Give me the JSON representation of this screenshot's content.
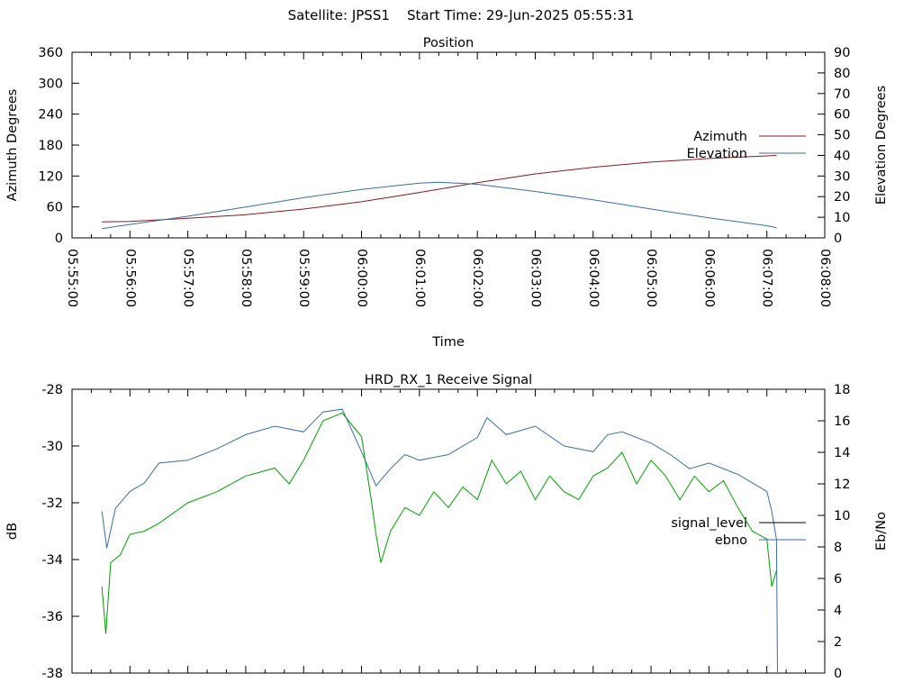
{
  "title": "Satellite: JPSS1    Start Time: 29-Jun-2025 05:55:31",
  "chart_data": [
    {
      "type": "line",
      "title": "Position",
      "xlabel": "Time",
      "ylabel": "Azimuth Degrees",
      "y2label": "Elevation Degrees",
      "xlim": [
        "05:55:00",
        "06:08:00"
      ],
      "x_tick_labels": [
        "05:55:00",
        "05:56:00",
        "05:57:00",
        "05:58:00",
        "05:59:00",
        "06:00:00",
        "06:01:00",
        "06:02:00",
        "06:03:00",
        "06:04:00",
        "06:05:00",
        "06:06:00",
        "06:07:00",
        "06:08:00"
      ],
      "ylim": [
        0,
        360
      ],
      "y_ticks": [
        0,
        60,
        120,
        180,
        240,
        300,
        360
      ],
      "y2lim": [
        0,
        90
      ],
      "y2_ticks": [
        0,
        10,
        20,
        30,
        40,
        50,
        60,
        70,
        80,
        90
      ],
      "legend": "right",
      "series": [
        {
          "name": "Azimuth",
          "axis": "y",
          "color": "#8b1a1a",
          "x": [
            "05:55:31",
            "05:56:00",
            "05:57:00",
            "05:58:00",
            "05:59:00",
            "06:00:00",
            "06:01:00",
            "06:02:00",
            "06:03:00",
            "06:04:00",
            "06:05:00",
            "06:06:00",
            "06:07:00",
            "06:07:10"
          ],
          "y": [
            31,
            32,
            38,
            45,
            56,
            70,
            88,
            107,
            124,
            137,
            147,
            154,
            159,
            160
          ]
        },
        {
          "name": "Elevation",
          "axis": "y2",
          "color": "#3a6ea5",
          "x": [
            "05:55:31",
            "05:56:00",
            "05:57:00",
            "05:58:00",
            "05:59:00",
            "06:00:00",
            "06:01:00",
            "06:01:20",
            "06:02:00",
            "06:03:00",
            "06:04:00",
            "06:05:00",
            "06:06:00",
            "06:07:00",
            "06:07:10"
          ],
          "y": [
            4.5,
            6.5,
            10.5,
            15,
            19.5,
            23.5,
            26.5,
            27,
            26,
            22.5,
            18.5,
            14,
            9.7,
            5.9,
            5
          ]
        }
      ]
    },
    {
      "type": "line",
      "title": "HRD_RX_1 Receive Signal",
      "ylabel": "dB",
      "y2label": "Eb/No",
      "xlim": [
        "05:55:00",
        "06:08:00"
      ],
      "ylim": [
        -38,
        -28
      ],
      "y_ticks": [
        -38,
        -36,
        -34,
        -32,
        -30,
        -28
      ],
      "y2lim": [
        0,
        18
      ],
      "y2_ticks": [
        0,
        2,
        4,
        6,
        8,
        10,
        12,
        14,
        16,
        18
      ],
      "legend": "right",
      "series": [
        {
          "name": "signal_level",
          "axis": "y",
          "color": "#3a6ea5",
          "x": [
            "05:55:31",
            "05:55:36",
            "05:55:45",
            "05:56:00",
            "05:56:15",
            "05:56:30",
            "05:57:00",
            "05:57:30",
            "05:58:00",
            "05:58:30",
            "05:59:00",
            "05:59:20",
            "05:59:40",
            "06:00:00",
            "06:00:15",
            "06:00:30",
            "06:00:45",
            "06:01:00",
            "06:01:30",
            "06:02:00",
            "06:02:10",
            "06:02:30",
            "06:03:00",
            "06:03:30",
            "06:04:00",
            "06:04:15",
            "06:04:30",
            "06:05:00",
            "06:05:20",
            "06:05:40",
            "06:06:00",
            "06:06:30",
            "06:07:00",
            "06:07:05",
            "06:07:10",
            "06:07:11"
          ],
          "y": [
            -32.3,
            -33.6,
            -32.2,
            -31.6,
            -31.3,
            -30.6,
            -30.5,
            -30.1,
            -29.6,
            -29.3,
            -29.5,
            -28.8,
            -28.7,
            -30.2,
            -31.4,
            -30.8,
            -30.3,
            -30.5,
            -30.3,
            -29.7,
            -29.0,
            -29.6,
            -29.3,
            -30.0,
            -30.2,
            -29.6,
            -29.5,
            -29.9,
            -30.3,
            -30.8,
            -30.6,
            -31.0,
            -31.6,
            -32.3,
            -33.3,
            -38.0
          ]
        },
        {
          "name": "ebno",
          "axis": "y2",
          "color": "#00a000",
          "x": [
            "05:55:31",
            "05:55:35",
            "05:55:40",
            "05:55:50",
            "05:56:00",
            "05:56:15",
            "05:56:30",
            "05:57:00",
            "05:57:30",
            "05:58:00",
            "05:58:30",
            "05:58:45",
            "05:59:00",
            "05:59:20",
            "05:59:40",
            "06:00:00",
            "06:00:10",
            "06:00:15",
            "06:00:20",
            "06:00:30",
            "06:00:45",
            "06:01:00",
            "06:01:15",
            "06:01:30",
            "06:01:45",
            "06:02:00",
            "06:02:15",
            "06:02:30",
            "06:02:45",
            "06:03:00",
            "06:03:15",
            "06:03:30",
            "06:03:45",
            "06:04:00",
            "06:04:15",
            "06:04:30",
            "06:04:45",
            "06:05:00",
            "06:05:15",
            "06:05:30",
            "06:05:45",
            "06:06:00",
            "06:06:15",
            "06:06:30",
            "06:06:45",
            "06:07:00",
            "06:07:05",
            "06:07:10"
          ],
          "y": [
            5.5,
            2.5,
            7.0,
            7.5,
            8.8,
            9.0,
            9.5,
            10.8,
            11.5,
            12.5,
            13.0,
            12.0,
            13.5,
            16.0,
            16.5,
            15.0,
            11.0,
            8.8,
            7.0,
            9.0,
            10.5,
            10.0,
            11.5,
            10.5,
            11.8,
            11.0,
            13.5,
            12.0,
            12.8,
            11.0,
            12.5,
            11.5,
            11.0,
            12.5,
            13.0,
            14.0,
            12.0,
            13.5,
            12.5,
            11.0,
            12.5,
            11.5,
            12.2,
            10.5,
            9.0,
            8.5,
            5.5,
            6.5
          ]
        }
      ]
    }
  ]
}
